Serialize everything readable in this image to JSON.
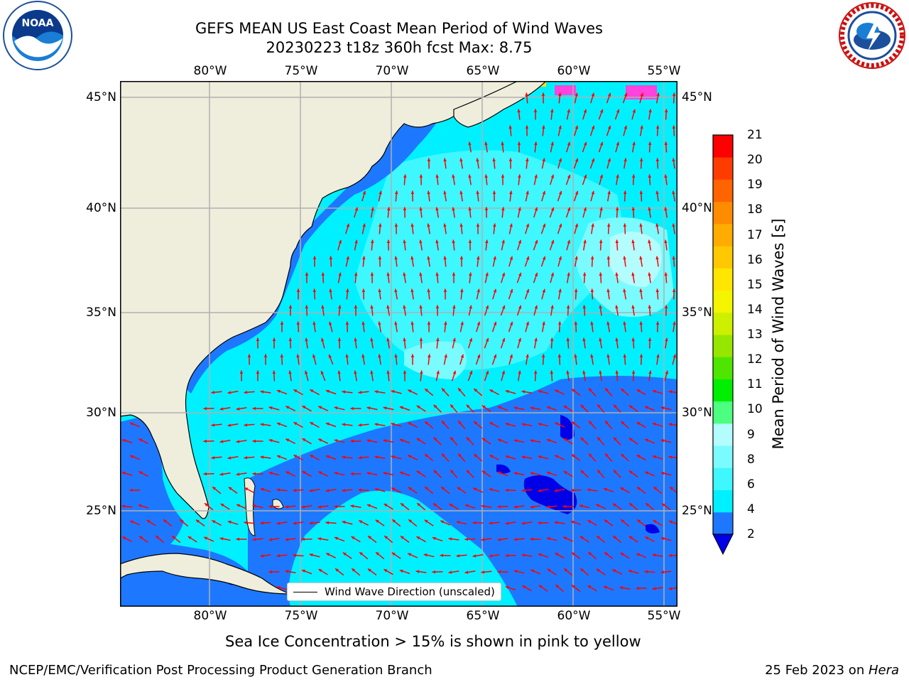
{
  "header": {
    "title_line1": "GEFS MEAN US East Coast Mean Period of Wind Waves",
    "title_line2": "20230223 t18z 360h fcst   Max: 8.75"
  },
  "logos": {
    "left": "NOAA",
    "right": "National Weather Service"
  },
  "map": {
    "lon_labels": [
      "80°W",
      "75°W",
      "70°W",
      "65°W",
      "60°W",
      "55°W"
    ],
    "lat_labels": [
      "45°N",
      "40°N",
      "35°N",
      "30°N",
      "25°N"
    ],
    "legend_text": "Wind Wave Direction (unscaled)",
    "colors": {
      "land": "#efeddc",
      "ocean_cyan": "#00f0ff",
      "ocean_light": "#7afbff",
      "ocean_pale": "#b3fdff",
      "ocean_blue": "#1e78ff",
      "ocean_dark": "#0000e8",
      "arrow": "#ff0000",
      "ice": "#ff44dd",
      "grid": "#b0b0b0"
    }
  },
  "colorbar": {
    "label": "Mean Period of Wind Waves [s]",
    "ticks": [
      "21",
      "20",
      "19",
      "18",
      "17",
      "16",
      "15",
      "14",
      "13",
      "12",
      "11",
      "10",
      "9",
      "8",
      "6",
      "4",
      "2"
    ],
    "colors_bottom_to_top": [
      "#1e78ff",
      "#00f0ff",
      "#3ff7ff",
      "#7afbff",
      "#b3fdff",
      "#4cff80",
      "#00ee00",
      "#4ee600",
      "#96e600",
      "#cdf000",
      "#f5f500",
      "#ffe600",
      "#ffc800",
      "#ffab00",
      "#ff8c00",
      "#ff6400",
      "#ff3c00",
      "#ff0000"
    ],
    "under_color": "#0000e8"
  },
  "footer": {
    "sea_ice_note": "Sea Ice Concentration > 15% is shown in pink to yellow",
    "branch": "NCEP/EMC/Verification Post Processing Product Generation Branch",
    "date_prefix": "25 Feb 2023 on ",
    "machine": "Hera"
  }
}
